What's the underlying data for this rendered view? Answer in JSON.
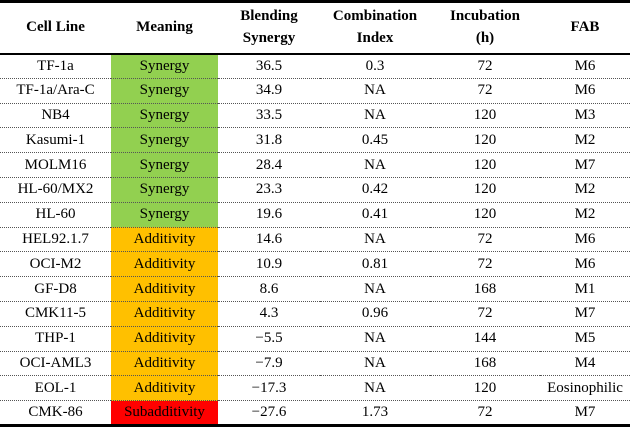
{
  "table": {
    "header": {
      "cell_line": "Cell Line",
      "meaning": "Meaning",
      "blending_line1": "Blending",
      "blending_line2": "Synergy",
      "combination_line1": "Combination",
      "combination_line2": "Index",
      "incubation_line1": "Incubation",
      "incubation_line2": "(h)",
      "fab": "FAB"
    },
    "status_colors": {
      "synergy": "#92D050",
      "additivity": "#FFC000",
      "subadditivity": "#FF0000"
    },
    "rows": [
      {
        "cell_line": "TF-1a",
        "meaning": "Synergy",
        "color": "#92D050",
        "blending_synergy": "36.5",
        "combination_index": "0.3",
        "incubation_h": "72",
        "fab": "M6"
      },
      {
        "cell_line": "TF-1a/Ara-C",
        "meaning": "Synergy",
        "color": "#92D050",
        "blending_synergy": "34.9",
        "combination_index": "NA",
        "incubation_h": "72",
        "fab": "M6"
      },
      {
        "cell_line": "NB4",
        "meaning": "Synergy",
        "color": "#92D050",
        "blending_synergy": "33.5",
        "combination_index": "NA",
        "incubation_h": "120",
        "fab": "M3"
      },
      {
        "cell_line": "Kasumi-1",
        "meaning": "Synergy",
        "color": "#92D050",
        "blending_synergy": "31.8",
        "combination_index": "0.45",
        "incubation_h": "120",
        "fab": "M2"
      },
      {
        "cell_line": "MOLM16",
        "meaning": "Synergy",
        "color": "#92D050",
        "blending_synergy": "28.4",
        "combination_index": "NA",
        "incubation_h": "120",
        "fab": "M7"
      },
      {
        "cell_line": "HL-60/MX2",
        "meaning": "Synergy",
        "color": "#92D050",
        "blending_synergy": "23.3",
        "combination_index": "0.42",
        "incubation_h": "120",
        "fab": "M2"
      },
      {
        "cell_line": "HL-60",
        "meaning": "Synergy",
        "color": "#92D050",
        "blending_synergy": "19.6",
        "combination_index": "0.41",
        "incubation_h": "120",
        "fab": "M2"
      },
      {
        "cell_line": "HEL92.1.7",
        "meaning": "Additivity",
        "color": "#FFC000",
        "blending_synergy": "14.6",
        "combination_index": "NA",
        "incubation_h": "72",
        "fab": "M6"
      },
      {
        "cell_line": "OCI-M2",
        "meaning": "Additivity",
        "color": "#FFC000",
        "blending_synergy": "10.9",
        "combination_index": "0.81",
        "incubation_h": "72",
        "fab": "M6"
      },
      {
        "cell_line": "GF-D8",
        "meaning": "Additivity",
        "color": "#FFC000",
        "blending_synergy": "8.6",
        "combination_index": "NA",
        "incubation_h": "168",
        "fab": "M1"
      },
      {
        "cell_line": "CMK11-5",
        "meaning": "Additivity",
        "color": "#FFC000",
        "blending_synergy": "4.3",
        "combination_index": "0.96",
        "incubation_h": "72",
        "fab": "M7"
      },
      {
        "cell_line": "THP-1",
        "meaning": "Additivity",
        "color": "#FFC000",
        "blending_synergy": "−5.5",
        "combination_index": "NA",
        "incubation_h": "144",
        "fab": "M5"
      },
      {
        "cell_line": "OCI-AML3",
        "meaning": "Additivity",
        "color": "#FFC000",
        "blending_synergy": "−7.9",
        "combination_index": "NA",
        "incubation_h": "168",
        "fab": "M4"
      },
      {
        "cell_line": "EOL-1",
        "meaning": "Additivity",
        "color": "#FFC000",
        "blending_synergy": "−17.3",
        "combination_index": "NA",
        "incubation_h": "120",
        "fab": "Eosinophilic"
      },
      {
        "cell_line": "CMK-86",
        "meaning": "Subadditivity",
        "color": "#FF0000",
        "blending_synergy": "−27.6",
        "combination_index": "1.73",
        "incubation_h": "72",
        "fab": "M7"
      }
    ]
  },
  "chart_data": {
    "type": "table",
    "title": "",
    "columns": [
      "Cell Line",
      "Meaning",
      "Blending Synergy",
      "Combination Index",
      "Incubation (h)",
      "FAB"
    ],
    "rows": [
      [
        "TF-1a",
        "Synergy",
        36.5,
        0.3,
        72,
        "M6"
      ],
      [
        "TF-1a/Ara-C",
        "Synergy",
        34.9,
        null,
        72,
        "M6"
      ],
      [
        "NB4",
        "Synergy",
        33.5,
        null,
        120,
        "M3"
      ],
      [
        "Kasumi-1",
        "Synergy",
        31.8,
        0.45,
        120,
        "M2"
      ],
      [
        "MOLM16",
        "Synergy",
        28.4,
        null,
        120,
        "M7"
      ],
      [
        "HL-60/MX2",
        "Synergy",
        23.3,
        0.42,
        120,
        "M2"
      ],
      [
        "HL-60",
        "Synergy",
        19.6,
        0.41,
        120,
        "M2"
      ],
      [
        "HEL92.1.7",
        "Additivity",
        14.6,
        null,
        72,
        "M6"
      ],
      [
        "OCI-M2",
        "Additivity",
        10.9,
        0.81,
        72,
        "M6"
      ],
      [
        "GF-D8",
        "Additivity",
        8.6,
        null,
        168,
        "M1"
      ],
      [
        "CMK11-5",
        "Additivity",
        4.3,
        0.96,
        72,
        "M7"
      ],
      [
        "THP-1",
        "Additivity",
        -5.5,
        null,
        144,
        "M5"
      ],
      [
        "OCI-AML3",
        "Additivity",
        -7.9,
        null,
        168,
        "M4"
      ],
      [
        "EOL-1",
        "Additivity",
        -17.3,
        null,
        120,
        "Eosinophilic"
      ],
      [
        "CMK-86",
        "Subadditivity",
        -27.6,
        1.73,
        72,
        "M7"
      ]
    ]
  }
}
